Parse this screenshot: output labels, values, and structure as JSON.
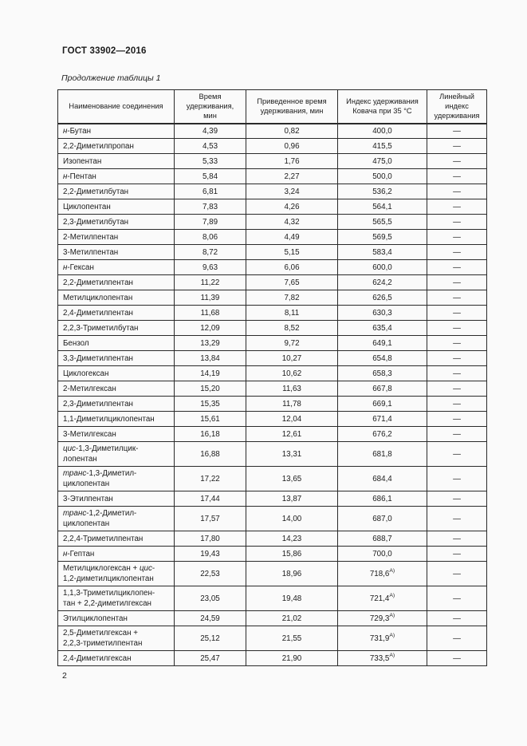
{
  "page": {
    "doc_title": "ГОСТ 33902—2016",
    "table_caption": "Продолжение таблицы 1",
    "page_number": "2"
  },
  "table": {
    "headers": [
      "Наименование соединения",
      "Время\nудерживания,\nмин",
      "Приведенное время\nудерживания, мин",
      "Индекс удерживания\nКовача при 35 °С",
      "Линейный\nиндекс\nудерживания"
    ],
    "rows": [
      {
        "name": "*н*-Бутан",
        "time": "4,39",
        "adj_time": "0,82",
        "kovats": "400,0",
        "linear": "—"
      },
      {
        "name": "2,2-Диметилпропан",
        "time": "4,53",
        "adj_time": "0,96",
        "kovats": "415,5",
        "linear": "—"
      },
      {
        "name": "Изопентан",
        "time": "5,33",
        "adj_time": "1,76",
        "kovats": "475,0",
        "linear": "—"
      },
      {
        "name": "*н*-Пентан",
        "time": "5,84",
        "adj_time": "2,27",
        "kovats": "500,0",
        "linear": "—"
      },
      {
        "name": "2,2-Диметилбутан",
        "time": "6,81",
        "adj_time": "3,24",
        "kovats": "536,2",
        "linear": "—"
      },
      {
        "name": "Циклопентан",
        "time": "7,83",
        "adj_time": "4,26",
        "kovats": "564,1",
        "linear": "—"
      },
      {
        "name": "2,3-Диметилбутан",
        "time": "7,89",
        "adj_time": "4,32",
        "kovats": "565,5",
        "linear": "—"
      },
      {
        "name": "2-Метилпентан",
        "time": "8,06",
        "adj_time": "4,49",
        "kovats": "569,5",
        "linear": "—"
      },
      {
        "name": "3-Метилпентан",
        "time": "8,72",
        "adj_time": "5,15",
        "kovats": "583,4",
        "linear": "—"
      },
      {
        "name": "*н*-Гексан",
        "time": "9,63",
        "adj_time": "6,06",
        "kovats": "600,0",
        "linear": "—"
      },
      {
        "name": "2,2-Диметилпентан",
        "time": "11,22",
        "adj_time": "7,65",
        "kovats": "624,2",
        "linear": "—"
      },
      {
        "name": "Метилциклопентан",
        "time": "11,39",
        "adj_time": "7,82",
        "kovats": "626,5",
        "linear": "—"
      },
      {
        "name": "2,4-Диметилпентан",
        "time": "11,68",
        "adj_time": "8,11",
        "kovats": "630,3",
        "linear": "—"
      },
      {
        "name": "2,2,3-Триметилбутан",
        "time": "12,09",
        "adj_time": "8,52",
        "kovats": "635,4",
        "linear": "—"
      },
      {
        "name": "Бензол",
        "time": "13,29",
        "adj_time": "9,72",
        "kovats": "649,1",
        "linear": "—"
      },
      {
        "name": "3,3-Диметилпентан",
        "time": "13,84",
        "adj_time": "10,27",
        "kovats": "654,8",
        "linear": "—"
      },
      {
        "name": "Циклогексан",
        "time": "14,19",
        "adj_time": "10,62",
        "kovats": "658,3",
        "linear": "—"
      },
      {
        "name": "2-Метилгексан",
        "time": "15,20",
        "adj_time": "11,63",
        "kovats": "667,8",
        "linear": "—"
      },
      {
        "name": "2,3-Диметилпентан",
        "time": "15,35",
        "adj_time": "11,78",
        "kovats": "669,1",
        "linear": "—"
      },
      {
        "name": "1,1-Диметилциклопентан",
        "time": "15,61",
        "adj_time": "12,04",
        "kovats": "671,4",
        "linear": "—"
      },
      {
        "name": "3-Метилгексан",
        "time": "16,18",
        "adj_time": "12,61",
        "kovats": "676,2",
        "linear": "—"
      },
      {
        "name": "*цис*-1,3-Диметилцик-\nлопентан",
        "time": "16,88",
        "adj_time": "13,31",
        "kovats": "681,8",
        "linear": "—"
      },
      {
        "name": "*транс*-1,3-Диметил-\nциклопентан",
        "time": "17,22",
        "adj_time": "13,65",
        "kovats": "684,4",
        "linear": "—"
      },
      {
        "name": "3-Этилпентан",
        "time": "17,44",
        "adj_time": "13,87",
        "kovats": "686,1",
        "linear": "—"
      },
      {
        "name": "*транс*-1,2-Диметил-\nциклопентан",
        "time": "17,57",
        "adj_time": "14,00",
        "kovats": "687,0",
        "linear": "—"
      },
      {
        "name": "2,2,4-Триметилпентан",
        "time": "17,80",
        "adj_time": "14,23",
        "kovats": "688,7",
        "linear": "—"
      },
      {
        "name": "*н*-Гептан",
        "time": "19,43",
        "adj_time": "15,86",
        "kovats": "700,0",
        "linear": "—"
      },
      {
        "name": "Метилциклогексан + *цис*-\n1,2-диметилциклопентан",
        "time": "22,53",
        "adj_time": "18,96",
        "kovats": "718,6",
        "kovats_sup": "А)",
        "linear": "—"
      },
      {
        "name": "1,1,3-Триметилциклопен-\nтан + 2,2-диметилгексан",
        "time": "23,05",
        "adj_time": "19,48",
        "kovats": "721,4",
        "kovats_sup": "А)",
        "linear": "—"
      },
      {
        "name": "Этилциклопентан",
        "time": "24,59",
        "adj_time": "21,02",
        "kovats": "729,3",
        "kovats_sup": "А)",
        "linear": "—"
      },
      {
        "name": "2,5-Диметилгексан +\n2,2,3-триметилпентан",
        "time": "25,12",
        "adj_time": "21,55",
        "kovats": "731,9",
        "kovats_sup": "А)",
        "linear": "—"
      },
      {
        "name": "2,4-Диметилгексан",
        "time": "25,47",
        "adj_time": "21,90",
        "kovats": "733,5",
        "kovats_sup": "А)",
        "linear": "—"
      }
    ]
  }
}
